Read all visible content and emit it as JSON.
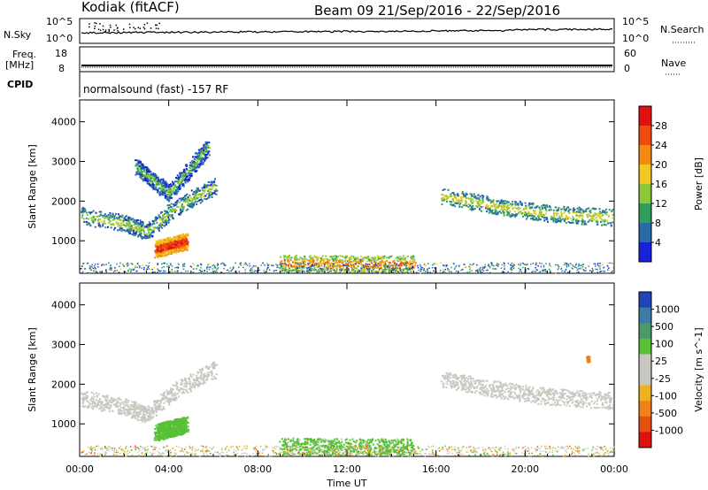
{
  "header": {
    "station": "Kodiak (fitACF)",
    "beam_info": "Beam 09  21/Sep/2016 - 22/Sep/2016"
  },
  "panels": {
    "sky": {
      "left_label": "N.Sky",
      "left_ticks": [
        "10^5",
        "10^0"
      ],
      "right_ticks": [
        "10^5",
        "10^0"
      ],
      "right_label": "N.Search"
    },
    "freq": {
      "left_label_line1": "Freq.",
      "left_label_line2": "[MHz]",
      "left_ticks": [
        "18",
        "8"
      ],
      "right_ticks": [
        "60",
        "0"
      ],
      "right_label": "Nave"
    },
    "cpid": {
      "label": "CPID",
      "mode_text": "normalsound (fast) -157 RF"
    }
  },
  "power_colorbar": {
    "label": "Power [dB]",
    "ticks": [
      "28",
      "24",
      "20",
      "16",
      "12",
      "8",
      "4"
    ],
    "colors": [
      "#e01010",
      "#f04a10",
      "#f58a10",
      "#f0c820",
      "#8cc83c",
      "#2e9e5c",
      "#2a6aa8",
      "#1822d8"
    ]
  },
  "velocity_colorbar": {
    "label": "Velocity [m s^-1]",
    "ticks": [
      "1000",
      "500",
      "100",
      "25",
      "-25",
      "-100",
      "-500",
      "-1000"
    ],
    "colors": [
      "#2244b8",
      "#3e7aa8",
      "#4a9a6a",
      "#58c035",
      "#c8c8c0",
      "#c8c8c0",
      "#f0b020",
      "#f08018",
      "#e85010",
      "#e01010"
    ]
  },
  "chart_data": [
    {
      "type": "heatmap",
      "title": "",
      "xlabel": "",
      "ylabel": "Slant Range [km]",
      "colorbar_label": "Power [dB]",
      "x_ticks": [
        "00:00",
        "04:00",
        "08:00",
        "12:00",
        "16:00",
        "20:00",
        "00:00"
      ],
      "y_ticks": [
        1000,
        2000,
        3000,
        4000
      ],
      "xlim_hours": [
        0,
        24
      ],
      "ylim_km": [
        180,
        4550
      ],
      "features": [
        {
          "x": [
            0.0,
            2.0,
            3.0,
            4.3,
            6.1
          ],
          "y": [
            1650,
            1450,
            1250,
            1850,
            2400
          ],
          "level_db": 10
        },
        {
          "x": [
            2.5,
            4.0,
            5.8
          ],
          "y": [
            2900,
            2200,
            3400
          ],
          "level_db": 8
        },
        {
          "x": [
            3.4,
            4.1,
            4.8
          ],
          "y": [
            800,
            900,
            1000
          ],
          "level_db": 24
        },
        {
          "x": [
            16.2,
            18.5,
            21.0,
            23.9
          ],
          "y": [
            2150,
            1900,
            1700,
            1600
          ],
          "level_db": 12
        },
        {
          "x": [
            9.0,
            12.0,
            15.0
          ],
          "y": [
            450,
            430,
            430
          ],
          "level_db": 18
        }
      ]
    },
    {
      "type": "heatmap",
      "title": "",
      "xlabel": "Time UT",
      "ylabel": "Slant Range [km]",
      "colorbar_label": "Velocity [m s^-1]",
      "x_ticks": [
        "00:00",
        "04:00",
        "08:00",
        "12:00",
        "16:00",
        "20:00",
        "00:00"
      ],
      "y_ticks": [
        1000,
        2000,
        3000,
        4000
      ],
      "xlim_hours": [
        0,
        24
      ],
      "ylim_km": [
        180,
        4550
      ],
      "features": [
        {
          "x": [
            0.0,
            2.0,
            3.0,
            4.3,
            6.1
          ],
          "y": [
            1650,
            1450,
            1250,
            1850,
            2400
          ],
          "velocity": 0
        },
        {
          "x": [
            3.4,
            4.1,
            4.8
          ],
          "y": [
            800,
            900,
            1000
          ],
          "velocity": 150
        },
        {
          "x": [
            16.2,
            18.5,
            21.0,
            23.9
          ],
          "y": [
            2150,
            1900,
            1700,
            1600
          ],
          "velocity": 0
        },
        {
          "x": [
            9.0,
            12.0,
            15.0
          ],
          "y": [
            450,
            430,
            430
          ],
          "velocity": 120
        },
        {
          "x": [
            22.8
          ],
          "y": [
            2650
          ],
          "velocity": -300
        }
      ]
    }
  ]
}
